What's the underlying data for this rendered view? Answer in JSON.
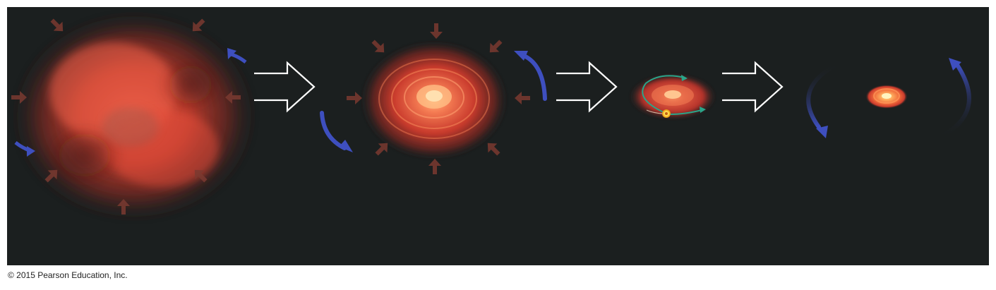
{
  "copyright": "© 2015 Pearson Education, Inc.",
  "stages": [
    {
      "name": "contracting-cloud",
      "icon": "gas-cloud"
    },
    {
      "name": "spinning-flattening-disk",
      "icon": "spiral-disk"
    },
    {
      "name": "protoplanetary-disk-with-orbit",
      "icon": "orbiting-disk"
    },
    {
      "name": "remaining-star",
      "icon": "small-bright-disk"
    }
  ],
  "colors": {
    "background": "#1b1f1f",
    "cloud": "#e2473a",
    "inward_arrow": "#7a3a30",
    "rotation_arrow": "#3e4fbf",
    "transition_arrow_outline": "#ffffff",
    "orbit": "#2aa58a",
    "star": "#ffd23a"
  }
}
